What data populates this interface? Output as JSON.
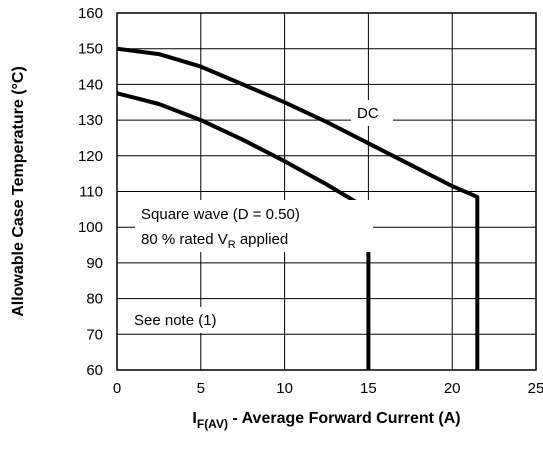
{
  "chart_data": {
    "type": "line",
    "xlabel": {
      "main": "I",
      "sub": "F(AV)",
      "rest": " - Average Forward Current (A)"
    },
    "ylabel": "Allowable Case Temperature (°C)",
    "xlim": [
      0,
      25
    ],
    "ylim": [
      60,
      160
    ],
    "x_ticks": [
      0,
      5,
      10,
      15,
      20,
      25
    ],
    "y_ticks": [
      60,
      70,
      80,
      90,
      100,
      110,
      120,
      130,
      140,
      150,
      160
    ],
    "grid": true,
    "series": [
      {
        "name": "DC",
        "points": [
          [
            0,
            150
          ],
          [
            2.5,
            148.5
          ],
          [
            5,
            145
          ],
          [
            7.5,
            140
          ],
          [
            10,
            135
          ],
          [
            12.5,
            129.5
          ],
          [
            15,
            123.5
          ],
          [
            17.5,
            117.5
          ],
          [
            20,
            111.5
          ],
          [
            21.5,
            108.5
          ],
          [
            21.5,
            60
          ]
        ]
      },
      {
        "name": "Square wave (D = 0.50)",
        "points": [
          [
            0,
            137.5
          ],
          [
            2.5,
            134.5
          ],
          [
            5,
            130
          ],
          [
            7.5,
            124.5
          ],
          [
            10,
            118.5
          ],
          [
            12.5,
            112
          ],
          [
            15,
            105
          ],
          [
            15,
            60
          ]
        ]
      }
    ],
    "annotations": {
      "dc": "DC",
      "square_wave": "Square wave (D = 0.50)",
      "rated_main": "80 % rated V",
      "rated_sub": "R",
      "rated_rest": " applied",
      "see_note": "See note (1)"
    }
  }
}
